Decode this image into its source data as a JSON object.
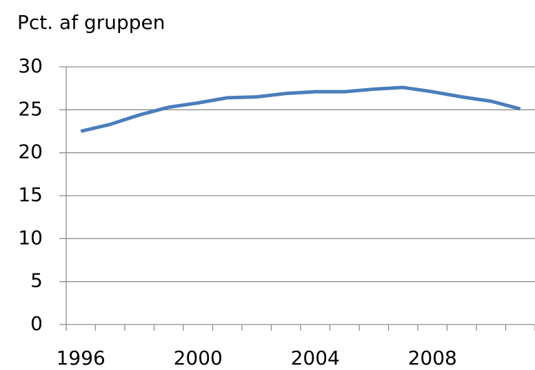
{
  "chart_data": {
    "type": "line",
    "title": "Pct. af gruppen",
    "categories": [
      "1996",
      null,
      null,
      null,
      "2000",
      null,
      null,
      null,
      "2004",
      null,
      null,
      null,
      "2008",
      null,
      null,
      null
    ],
    "series": [
      {
        "color": "#4a7ebb",
        "values": [
          22.5,
          23.3,
          24.4,
          25.3,
          25.8,
          26.4,
          26.5,
          26.9,
          27.1,
          27.1,
          27.4,
          27.6,
          27.1,
          26.5,
          26.0,
          25.1
        ]
      }
    ],
    "ylim": [
      0,
      30
    ],
    "yticks": [
      0,
      5,
      10,
      15,
      20,
      25,
      30
    ],
    "grid": true
  }
}
